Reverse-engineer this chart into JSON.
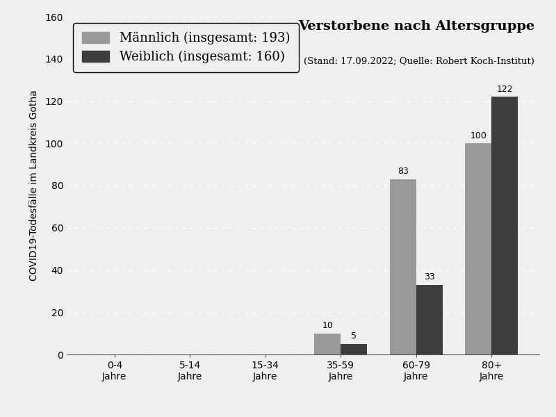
{
  "title": "Verstorbene nach Altersgruppe",
  "subtitle": "(Stand: 17.09.2022; Quelle: Robert Koch-Institut)",
  "ylabel": "COVID19-Todesfälle im Landkreis Gotha",
  "categories": [
    "0-4\nJahre",
    "5-14\nJahre",
    "15-34\nJahre",
    "35-59\nJahre",
    "60-79\nJahre",
    "80+\nJahre"
  ],
  "maennlich_values": [
    0,
    0,
    0,
    10,
    83,
    100
  ],
  "weiblich_values": [
    0,
    0,
    0,
    5,
    33,
    122
  ],
  "maennlich_total": 193,
  "weiblich_total": 160,
  "maennlich_color": "#999999",
  "weiblich_color": "#3d3d3d",
  "ylim": [
    0,
    160
  ],
  "yticks": [
    0,
    20,
    40,
    60,
    80,
    100,
    120,
    140,
    160
  ],
  "bar_width": 0.35,
  "background_color": "#efefef",
  "grid_color": "#ffffff",
  "title_fontsize": 14,
  "subtitle_fontsize": 9.5,
  "legend_name_fontsize": 13,
  "legend_detail_fontsize": 10,
  "axis_label_fontsize": 10,
  "tick_fontsize": 10,
  "value_label_fontsize": 9
}
